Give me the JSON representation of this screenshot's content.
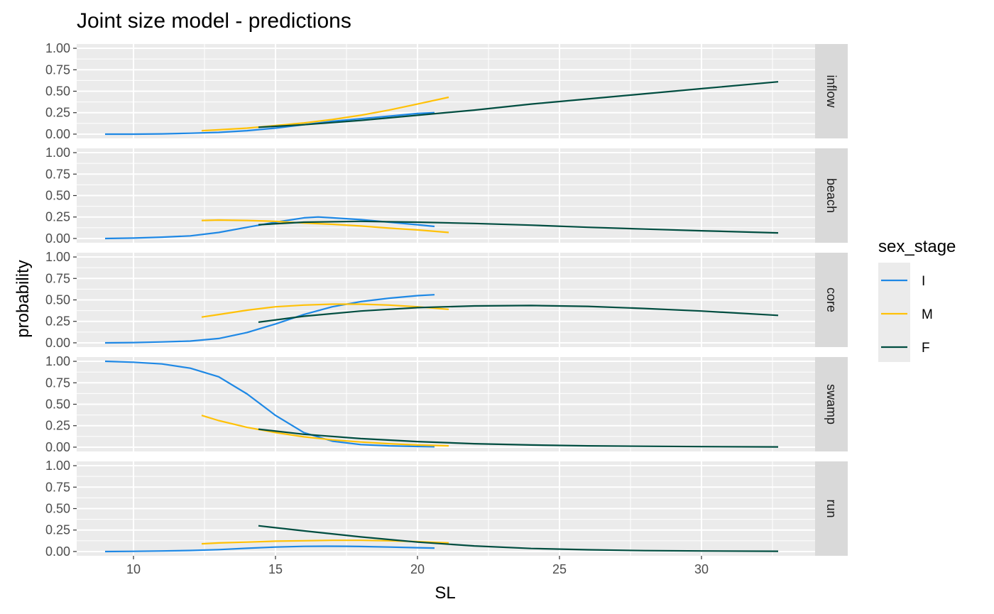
{
  "chart_data": {
    "type": "line",
    "title": "Joint size model - predictions",
    "xlabel": "SL",
    "ylabel": "probability",
    "xlim": [
      8,
      34
    ],
    "ylim": [
      -0.05,
      1.05
    ],
    "x_ticks": [
      10,
      15,
      20,
      25,
      30
    ],
    "y_ticks": [
      0.0,
      0.25,
      0.5,
      0.75,
      1.0
    ],
    "y_tick_labels": [
      "0.00",
      "0.25",
      "0.50",
      "0.75",
      "1.00"
    ],
    "grid": true,
    "legend": {
      "title": "sex_stage",
      "position": "right",
      "entries": [
        {
          "label": "I",
          "color": "#1E88E5"
        },
        {
          "label": "M",
          "color": "#FFC107"
        },
        {
          "label": "F",
          "color": "#004D40"
        }
      ]
    },
    "facets": [
      {
        "label": "inflow",
        "series": [
          {
            "name": "I",
            "x": [
              9,
              10,
              11,
              12,
              13,
              14,
              15,
              16,
              17,
              18,
              19,
              20,
              20.6
            ],
            "y": [
              0.0,
              0.0,
              0.003,
              0.01,
              0.02,
              0.04,
              0.07,
              0.11,
              0.15,
              0.18,
              0.21,
              0.24,
              0.25
            ]
          },
          {
            "name": "M",
            "x": [
              12.4,
              13,
              14,
              15,
              16,
              17,
              18,
              19,
              20,
              21.1
            ],
            "y": [
              0.04,
              0.05,
              0.07,
              0.1,
              0.13,
              0.17,
              0.22,
              0.28,
              0.35,
              0.43
            ]
          },
          {
            "name": "F",
            "x": [
              14.4,
              16,
              18,
              20,
              22,
              24,
              26,
              28,
              30,
              32.7
            ],
            "y": [
              0.08,
              0.11,
              0.16,
              0.22,
              0.28,
              0.35,
              0.41,
              0.47,
              0.53,
              0.61
            ]
          }
        ]
      },
      {
        "label": "beach",
        "series": [
          {
            "name": "I",
            "x": [
              9,
              10,
              11,
              12,
              13,
              14,
              15,
              16,
              16.5,
              17,
              18,
              19,
              20,
              20.6
            ],
            "y": [
              0.0,
              0.005,
              0.015,
              0.03,
              0.07,
              0.13,
              0.19,
              0.24,
              0.25,
              0.24,
              0.22,
              0.19,
              0.16,
              0.14
            ]
          },
          {
            "name": "M",
            "x": [
              12.4,
              13,
              14,
              15,
              16,
              17,
              18,
              19,
              20,
              21.1
            ],
            "y": [
              0.21,
              0.215,
              0.21,
              0.2,
              0.18,
              0.165,
              0.145,
              0.12,
              0.1,
              0.07
            ]
          },
          {
            "name": "F",
            "x": [
              14.4,
              16,
              18,
              20,
              22,
              24,
              26,
              28,
              30,
              32.7
            ],
            "y": [
              0.16,
              0.19,
              0.2,
              0.19,
              0.175,
              0.155,
              0.13,
              0.11,
              0.09,
              0.065
            ]
          }
        ]
      },
      {
        "label": "core",
        "series": [
          {
            "name": "I",
            "x": [
              9,
              10,
              11,
              12,
              13,
              14,
              15,
              16,
              17,
              18,
              19,
              20,
              20.6
            ],
            "y": [
              0.0,
              0.003,
              0.01,
              0.02,
              0.05,
              0.12,
              0.22,
              0.33,
              0.42,
              0.48,
              0.52,
              0.55,
              0.56
            ]
          },
          {
            "name": "M",
            "x": [
              12.4,
              13,
              14,
              15,
              16,
              17,
              18,
              19,
              20,
              21.1
            ],
            "y": [
              0.3,
              0.33,
              0.38,
              0.42,
              0.44,
              0.45,
              0.45,
              0.44,
              0.42,
              0.39
            ]
          },
          {
            "name": "F",
            "x": [
              14.4,
              16,
              18,
              20,
              22,
              24,
              26,
              28,
              30,
              32.7
            ],
            "y": [
              0.24,
              0.31,
              0.37,
              0.41,
              0.43,
              0.435,
              0.425,
              0.4,
              0.37,
              0.32
            ]
          }
        ]
      },
      {
        "label": "swamp",
        "series": [
          {
            "name": "I",
            "x": [
              9,
              10,
              11,
              12,
              13,
              14,
              15,
              16,
              17,
              18,
              19,
              20,
              20.6
            ],
            "y": [
              1.0,
              0.99,
              0.97,
              0.92,
              0.82,
              0.62,
              0.37,
              0.17,
              0.07,
              0.03,
              0.015,
              0.008,
              0.005
            ]
          },
          {
            "name": "M",
            "x": [
              12.4,
              13,
              14,
              15,
              16,
              17,
              18,
              19,
              20,
              21.1
            ],
            "y": [
              0.37,
              0.31,
              0.23,
              0.17,
              0.12,
              0.085,
              0.06,
              0.04,
              0.025,
              0.015
            ]
          },
          {
            "name": "F",
            "x": [
              14.4,
              16,
              18,
              20,
              22,
              24,
              26,
              28,
              30,
              32.7
            ],
            "y": [
              0.21,
              0.15,
              0.1,
              0.065,
              0.04,
              0.025,
              0.015,
              0.01,
              0.006,
              0.003
            ]
          }
        ]
      },
      {
        "label": "run",
        "series": [
          {
            "name": "I",
            "x": [
              9,
              10,
              11,
              12,
              13,
              14,
              15,
              16,
              16.8,
              17.5,
              18,
              19,
              20,
              20.6
            ],
            "y": [
              0.0,
              0.002,
              0.006,
              0.012,
              0.022,
              0.038,
              0.052,
              0.06,
              0.062,
              0.061,
              0.058,
              0.052,
              0.044,
              0.04
            ]
          },
          {
            "name": "M",
            "x": [
              12.4,
              13,
              14,
              15,
              16,
              17,
              18,
              19,
              20,
              21.1
            ],
            "y": [
              0.09,
              0.1,
              0.11,
              0.12,
              0.125,
              0.13,
              0.13,
              0.125,
              0.115,
              0.1
            ]
          },
          {
            "name": "F",
            "x": [
              14.4,
              16,
              18,
              20,
              22,
              24,
              26,
              28,
              30,
              32.7
            ],
            "y": [
              0.3,
              0.24,
              0.17,
              0.11,
              0.065,
              0.035,
              0.02,
              0.01,
              0.006,
              0.003
            ]
          }
        ]
      }
    ]
  }
}
